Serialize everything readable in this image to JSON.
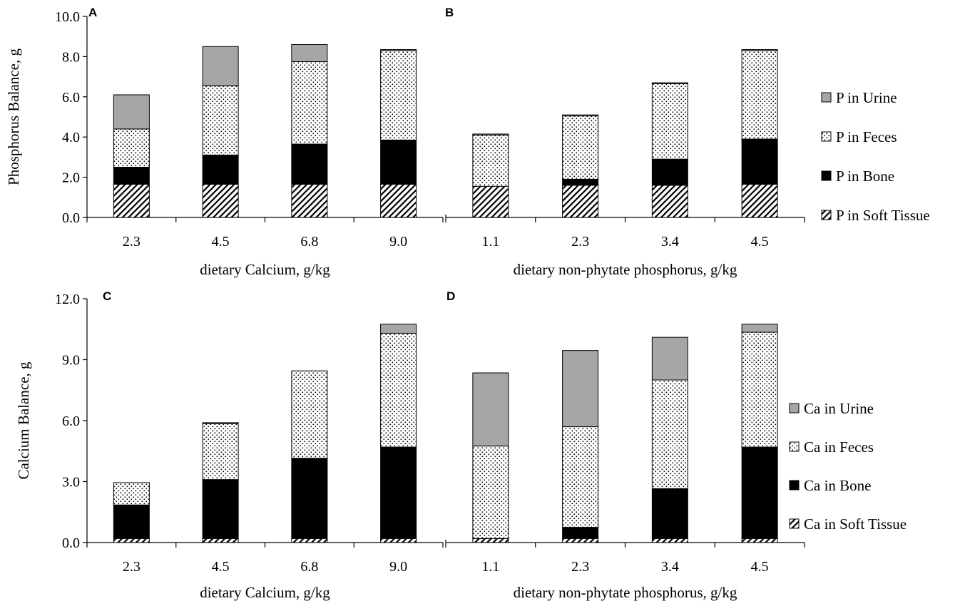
{
  "colors": {
    "urine": "#a6a6a6",
    "bone": "#000000",
    "axis": "#000000"
  },
  "patterns": {
    "feces": "dotted",
    "soft_tissue": "diagonal-hatch"
  },
  "chart_data": [
    {
      "panel": "A",
      "type": "bar",
      "stacked": true,
      "categories": [
        "2.3",
        "4.5",
        "6.8",
        "9.0"
      ],
      "xlabel": "dietary Calcium, g/kg",
      "ylabel": "Phosphorus Balance, g",
      "ylim": [
        0,
        10
      ],
      "yticks": [
        "0.0",
        "2.0",
        "4.0",
        "6.0",
        "8.0",
        "10.0"
      ],
      "series": [
        {
          "name": "P in Soft Tissue",
          "values": [
            1.65,
            1.65,
            1.65,
            1.65
          ]
        },
        {
          "name": "P in Bone",
          "values": [
            0.85,
            1.45,
            2.0,
            2.2
          ]
        },
        {
          "name": "P in Feces",
          "values": [
            1.9,
            3.45,
            4.1,
            4.45
          ]
        },
        {
          "name": "P in Urine",
          "values": [
            1.7,
            1.95,
            0.85,
            0.05
          ]
        }
      ]
    },
    {
      "panel": "B",
      "type": "bar",
      "stacked": true,
      "categories": [
        "1.1",
        "2.3",
        "3.4",
        "4.5"
      ],
      "xlabel": "dietary non-phytate phosphorus, g/kg",
      "ylim": [
        0,
        10
      ],
      "series": [
        {
          "name": "P in Soft Tissue",
          "values": [
            1.55,
            1.6,
            1.6,
            1.65
          ]
        },
        {
          "name": "P in Bone",
          "values": [
            0.0,
            0.3,
            1.3,
            2.25
          ]
        },
        {
          "name": "P in Feces",
          "values": [
            2.55,
            3.15,
            3.75,
            4.4
          ]
        },
        {
          "name": "P in Urine",
          "values": [
            0.05,
            0.05,
            0.05,
            0.05
          ]
        }
      ],
      "legend": [
        "P in Urine",
        "P in Feces",
        "P in Bone",
        "P in Soft Tissue"
      ],
      "legend_position": "right"
    },
    {
      "panel": "C",
      "type": "bar",
      "stacked": true,
      "categories": [
        "2.3",
        "4.5",
        "6.8",
        "9.0"
      ],
      "xlabel": "dietary Calcium, g/kg",
      "ylabel": "Calcium Balance, g",
      "ylim": [
        0,
        12
      ],
      "yticks": [
        "0.0",
        "3.0",
        "6.0",
        "9.0",
        "12.0"
      ],
      "series": [
        {
          "name": "Ca in Soft Tissue",
          "values": [
            0.2,
            0.2,
            0.2,
            0.2
          ]
        },
        {
          "name": "Ca in Bone",
          "values": [
            1.65,
            2.9,
            3.95,
            4.5
          ]
        },
        {
          "name": "Ca in Feces",
          "values": [
            1.1,
            2.75,
            4.3,
            5.6
          ]
        },
        {
          "name": "Ca in Urine",
          "values": [
            0.0,
            0.05,
            0.0,
            0.45
          ]
        }
      ]
    },
    {
      "panel": "D",
      "type": "bar",
      "stacked": true,
      "categories": [
        "1.1",
        "2.3",
        "3.4",
        "4.5"
      ],
      "xlabel": "dietary non-phytate phosphorus, g/kg",
      "ylim": [
        0,
        12
      ],
      "series": [
        {
          "name": "Ca in Soft Tissue",
          "values": [
            0.2,
            0.2,
            0.2,
            0.2
          ]
        },
        {
          "name": "Ca in Bone",
          "values": [
            0.0,
            0.55,
            2.45,
            4.5
          ]
        },
        {
          "name": "Ca in Feces",
          "values": [
            4.55,
            4.95,
            5.35,
            5.65
          ]
        },
        {
          "name": "Ca in Urine",
          "values": [
            3.6,
            3.75,
            2.1,
            0.4
          ]
        }
      ],
      "legend": [
        "Ca in Urine",
        "Ca in Feces",
        "Ca in Bone",
        "Ca in Soft Tissue"
      ],
      "legend_position": "right"
    }
  ]
}
